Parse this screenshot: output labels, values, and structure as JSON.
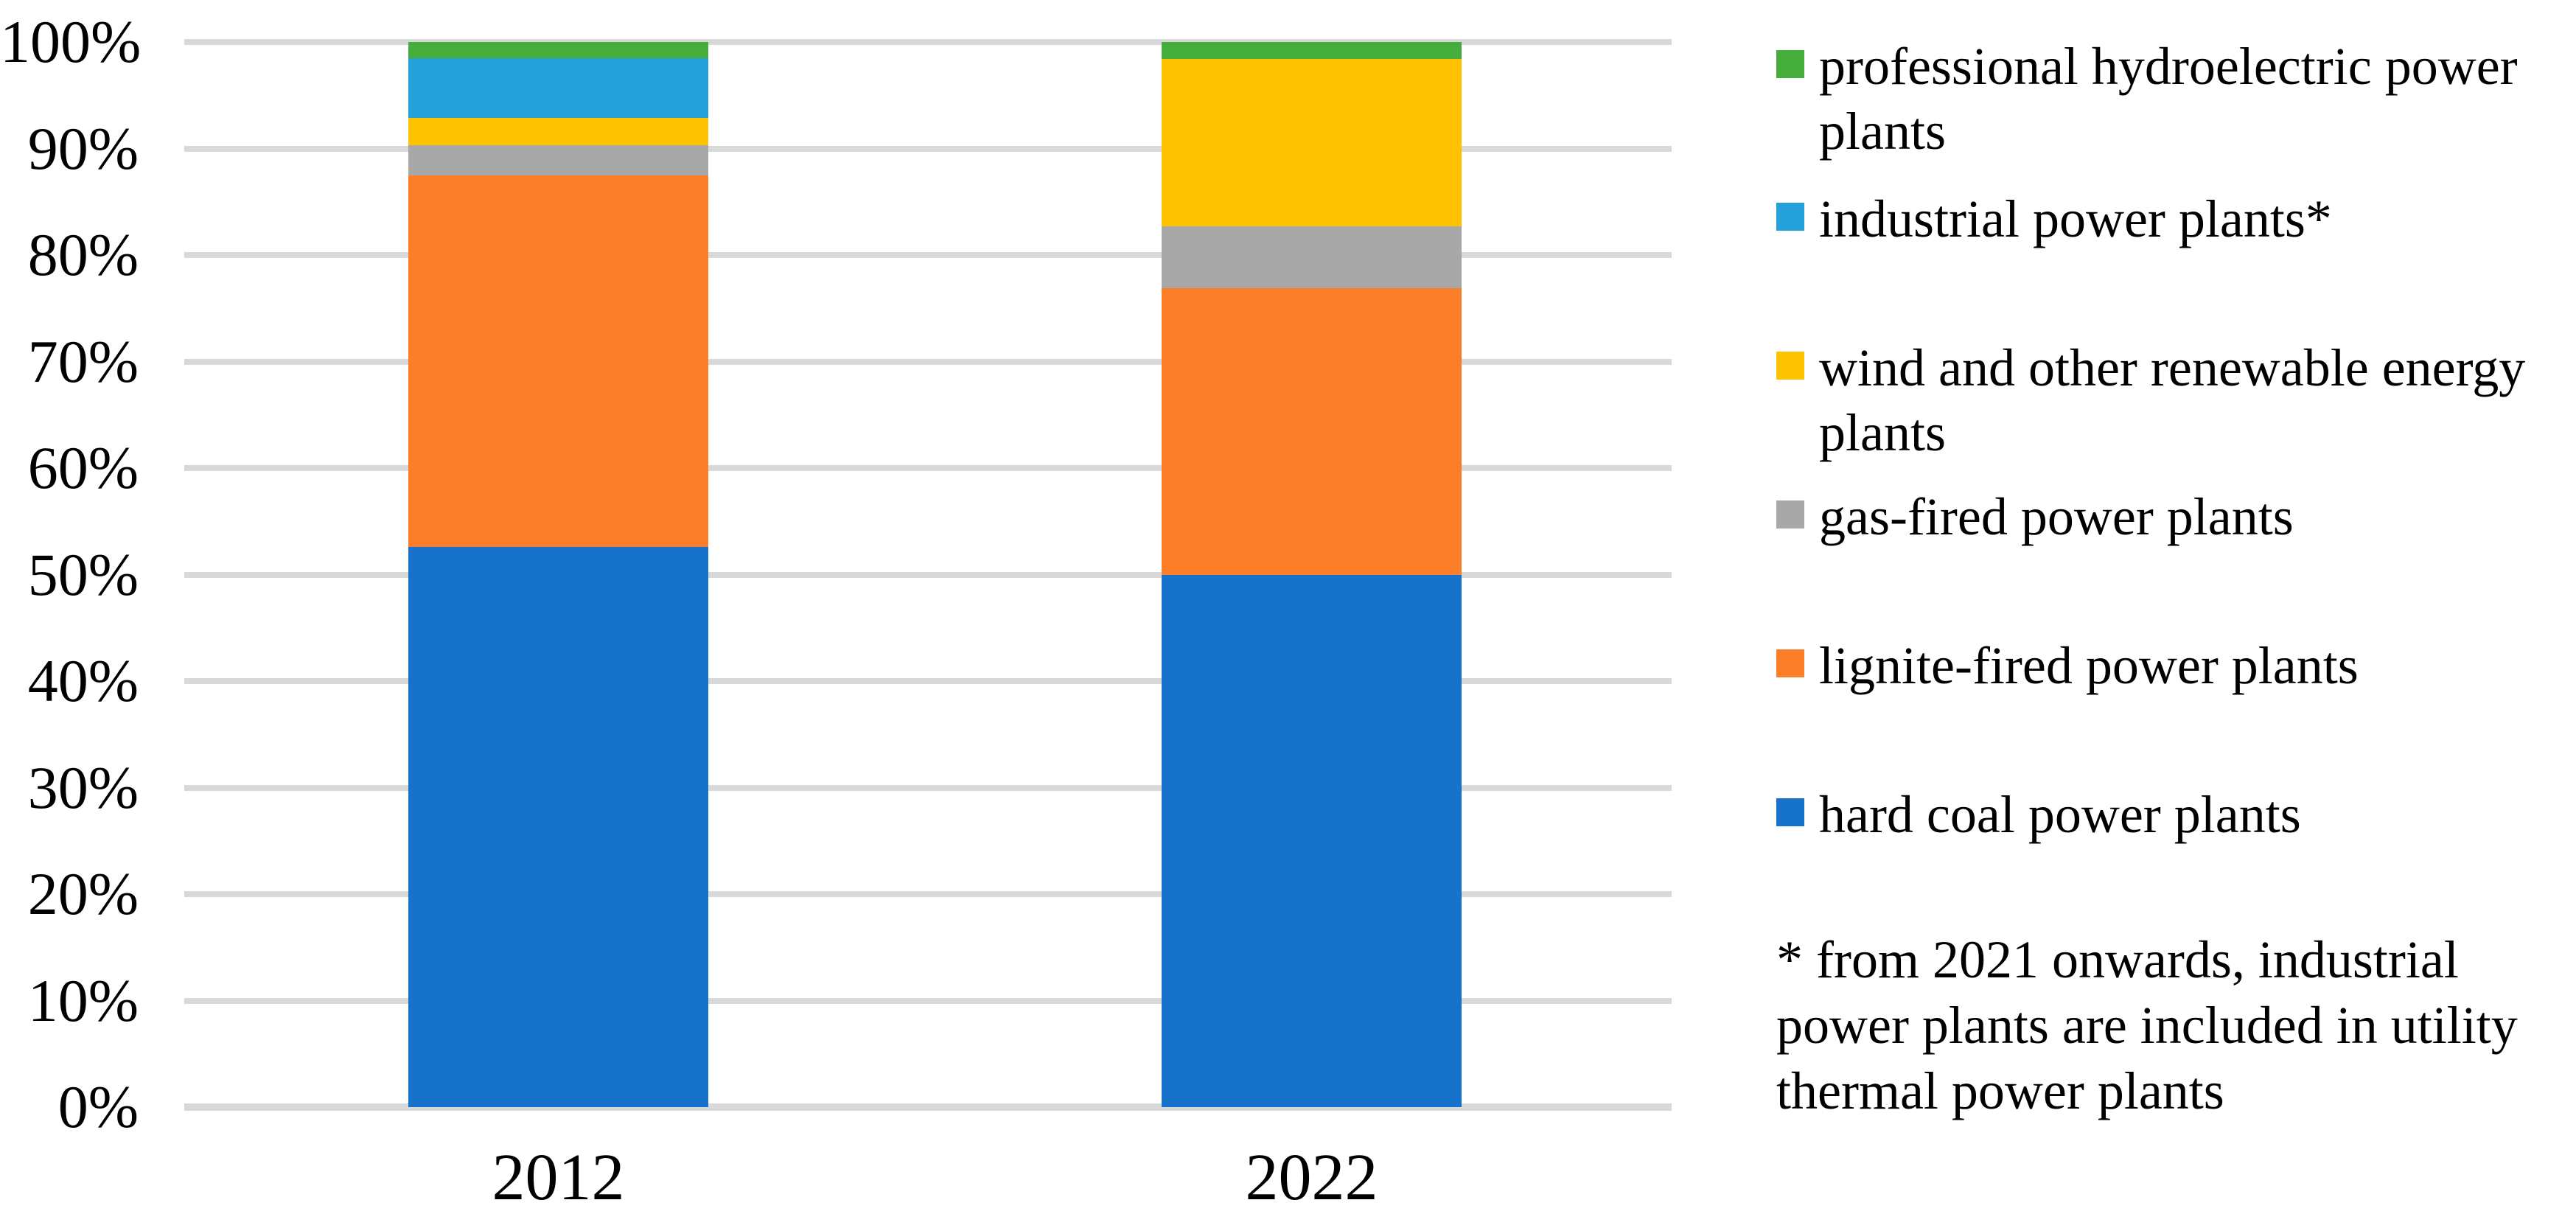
{
  "chart_data": {
    "type": "bar",
    "stacked": true,
    "percent_stacked": true,
    "title": "",
    "xlabel": "",
    "ylabel": "",
    "categories": [
      "2012",
      "2022"
    ],
    "series": [
      {
        "name": "hard coal power plants",
        "color": "#1772CC",
        "values": [
          52.6,
          50.0
        ]
      },
      {
        "name": "lignite-fired power plants",
        "color": "#FD7E28",
        "values": [
          34.9,
          26.9
        ]
      },
      {
        "name": "gas-fired power plants",
        "color": "#A8A8A8",
        "values": [
          2.8,
          5.8
        ]
      },
      {
        "name": "wind and other renewable energy plants",
        "color": "#FFC200",
        "values": [
          2.6,
          15.7
        ]
      },
      {
        "name": "industrial power plants*",
        "color": "#24A0DA",
        "values": [
          5.6,
          0.0
        ]
      },
      {
        "name": "professional hydroelectric power plants",
        "color": "#45AD3C",
        "values": [
          1.5,
          1.6
        ]
      }
    ],
    "ylim": [
      0,
      100
    ],
    "ytick_labels": [
      "0%",
      "10%",
      "20%",
      "30%",
      "40%",
      "50%",
      "60%",
      "70%",
      "80%",
      "90%",
      "100%"
    ],
    "grid": true,
    "gridline_color": "#D9D9D9",
    "legend_position": "right",
    "legend_top_to_bottom": [
      "professional hydroelectric power plants",
      "industrial power plants*",
      "wind and other renewable energy plants",
      "gas-fired power plants",
      "lignite-fired power plants",
      "hard coal power plants"
    ]
  },
  "footnote": {
    "text": "* from 2021 onwards, industrial power plants are included in utility thermal power plants"
  }
}
